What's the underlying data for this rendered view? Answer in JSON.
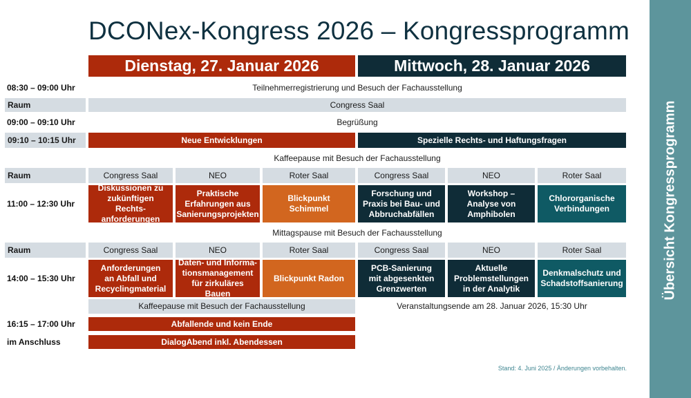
{
  "title": "DCONex-Kongress 2026 – Kongressprogramm",
  "days": [
    "Dienstag, 27. Januar 2026",
    "Mittwoch, 28. Januar 2026"
  ],
  "sidebar": "Übersicht Kongressprogramm",
  "raum_label": "Raum",
  "rooms": [
    "Congress Saal",
    "NEO",
    "Roter Saal",
    "Congress Saal",
    "NEO",
    "Roter Saal"
  ],
  "rows": {
    "registration": {
      "time": "08:30 – 09:00 Uhr",
      "text": "Teilnehmerregistrierung und Besuch der Fachausstellung"
    },
    "room_all": "Congress Saal",
    "welcome": {
      "time": "09:00 – 09:10 Uhr",
      "text": "Begrüßung"
    },
    "plenary": {
      "time": "09:10 – 10:15 Uhr",
      "day1": "Neue Entwicklungen",
      "day2": "Spezielle Rechts- und Haftungsfragen"
    },
    "coffee1": "Kaffeepause mit Besuch der Fachausstellung",
    "session1": {
      "time": "11:00 – 12:30 Uhr",
      "talks": [
        "Diskussionen zu zukünftigen Rechts­anforderungen",
        "Praktische Erfahrungen aus Sanierungsprojekten",
        "Blickpunkt Schimmel",
        "Forschung und Praxis bei Bau- und Abbruchabfällen",
        "Workshop – Analyse von Amphibolen",
        "Chlororganische Verbindungen"
      ]
    },
    "lunch": "Mittagspause mit Besuch der Fachausstellung",
    "session2": {
      "time": "14:00 – 15:30 Uhr",
      "talks": [
        "Anforderungen an Abfall und Recyclingmaterial",
        "Daten- und Informa­tionsmanagement für zirkuläres Bauen",
        "Blickpunkt Radon",
        "PCB-Sanierung mit abgesenkten Grenzwerten",
        "Aktuelle Problemstellungen in der Analytik",
        "Denkmalschutz und Schadstoffsanierung"
      ]
    },
    "coffee2": "Kaffeepause mit Besuch der Fachausstellung",
    "end": "Veranstaltungsende am 28. Januar 2026, 15:30 Uhr",
    "closing": {
      "time": "16:15 – 17:00 Uhr",
      "text": "Abfallende und kein Ende"
    },
    "evening": {
      "time": "im Anschluss",
      "text": "DialogAbend inkl. Abendessen"
    }
  },
  "footnote": "Stand: 4. Juni 2025 / Änderungen vorbehalten.",
  "colors": {
    "day1": "#ad2a0b",
    "day2": "#0f2c37",
    "orange": "#d2661f",
    "teal": "#0f5a64",
    "grey": "#d5dce2",
    "sidebar": "#5d959c"
  }
}
